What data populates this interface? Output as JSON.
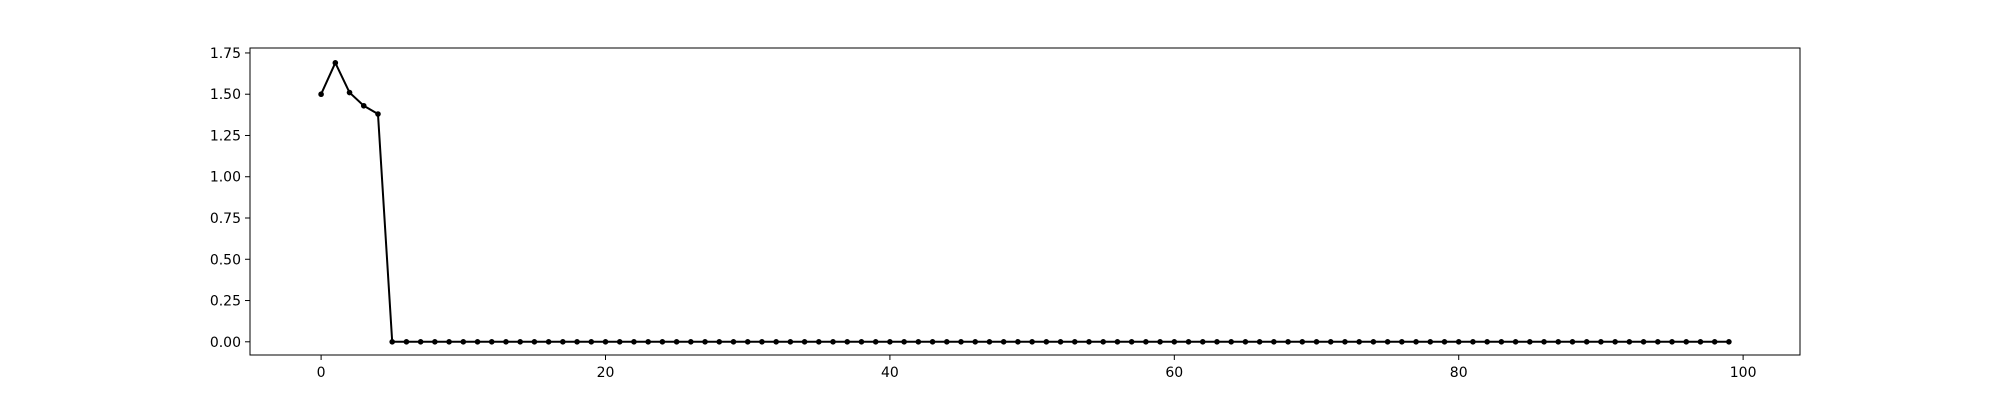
{
  "chart_data": {
    "type": "line",
    "title": "",
    "xlabel": "",
    "ylabel": "",
    "xlim": [
      -5,
      104
    ],
    "ylim": [
      -0.08,
      1.78
    ],
    "xticks": [
      0,
      20,
      40,
      60,
      80,
      100
    ],
    "yticks": [
      0.0,
      0.25,
      0.5,
      0.75,
      1.0,
      1.25,
      1.5,
      1.75
    ],
    "xtick_labels": [
      "0",
      "20",
      "40",
      "60",
      "80",
      "100"
    ],
    "ytick_labels": [
      "0.00",
      "0.25",
      "0.50",
      "0.75",
      "1.00",
      "1.25",
      "1.50",
      "1.75"
    ],
    "grid": false,
    "line_color": "#000000",
    "marker": "dot",
    "series": [
      {
        "x": [
          0,
          1,
          2,
          3,
          4,
          5,
          6,
          7,
          8,
          9,
          10,
          11,
          12,
          13,
          14,
          15,
          16,
          17,
          18,
          19,
          20,
          21,
          22,
          23,
          24,
          25,
          26,
          27,
          28,
          29,
          30,
          31,
          32,
          33,
          34,
          35,
          36,
          37,
          38,
          39,
          40,
          41,
          42,
          43,
          44,
          45,
          46,
          47,
          48,
          49,
          50,
          51,
          52,
          53,
          54,
          55,
          56,
          57,
          58,
          59,
          60,
          61,
          62,
          63,
          64,
          65,
          66,
          67,
          68,
          69,
          70,
          71,
          72,
          73,
          74,
          75,
          76,
          77,
          78,
          79,
          80,
          81,
          82,
          83,
          84,
          85,
          86,
          87,
          88,
          89,
          90,
          91,
          92,
          93,
          94,
          95,
          96,
          97,
          98,
          99
        ],
        "values": [
          1.5,
          1.69,
          1.51,
          1.43,
          1.38,
          0,
          0,
          0,
          0,
          0,
          0,
          0,
          0,
          0,
          0,
          0,
          0,
          0,
          0,
          0,
          0,
          0,
          0,
          0,
          0,
          0,
          0,
          0,
          0,
          0,
          0,
          0,
          0,
          0,
          0,
          0,
          0,
          0,
          0,
          0,
          0,
          0,
          0,
          0,
          0,
          0,
          0,
          0,
          0,
          0,
          0,
          0,
          0,
          0,
          0,
          0,
          0,
          0,
          0,
          0,
          0,
          0,
          0,
          0,
          0,
          0,
          0,
          0,
          0,
          0,
          0,
          0,
          0,
          0,
          0,
          0,
          0,
          0,
          0,
          0,
          0,
          0,
          0,
          0,
          0,
          0,
          0,
          0,
          0,
          0,
          0,
          0,
          0,
          0,
          0,
          0,
          0,
          0,
          0,
          0
        ]
      }
    ]
  }
}
